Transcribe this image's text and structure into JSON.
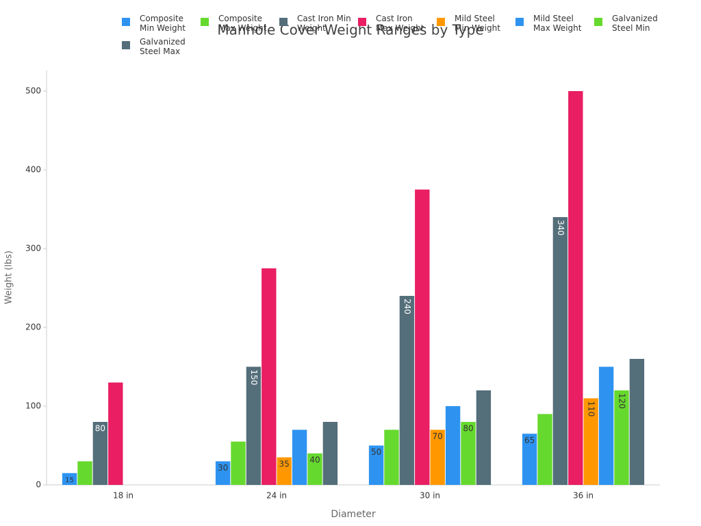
{
  "chart_data": {
    "type": "bar",
    "title": "Manhole Cover Weight Ranges by Type",
    "x_label": "Diameter",
    "y_label": "Weight (lbs)",
    "categories": [
      "18 in",
      "24 in",
      "30 in",
      "36 in"
    ],
    "series": [
      {
        "name": "Composite Min Weight",
        "color": "#2e93f0",
        "values": [
          15,
          30,
          50,
          65
        ],
        "data_labels": true
      },
      {
        "name": "Composite Max Weight",
        "color": "#66d92e",
        "values": [
          30,
          55,
          70,
          90
        ],
        "data_labels": false
      },
      {
        "name": "Cast Iron Min Weight",
        "color": "#546e7a",
        "values": [
          80,
          150,
          240,
          340
        ],
        "data_labels": true
      },
      {
        "name": "Cast Iron Max Weight",
        "color": "#e91e63",
        "values": [
          130,
          275,
          375,
          500
        ],
        "data_labels": false
      },
      {
        "name": "Mild Steel Min Weight",
        "color": "#ff9800",
        "values": [
          null,
          35,
          70,
          110
        ],
        "data_labels": true
      },
      {
        "name": "Mild Steel Max Weight",
        "color": "#2e93f0",
        "values": [
          null,
          70,
          100,
          150
        ],
        "data_labels": false
      },
      {
        "name": "Galvanized Steel Min",
        "color": "#66d92e",
        "values": [
          null,
          40,
          80,
          120
        ],
        "data_labels": true
      },
      {
        "name": "Galvanized Steel Max",
        "color": "#546e7a",
        "values": [
          null,
          80,
          120,
          160
        ],
        "data_labels": false
      }
    ],
    "ylim": [
      0,
      525
    ],
    "yticks": [
      0,
      100,
      200,
      300,
      400,
      500
    ],
    "grid": false
  }
}
